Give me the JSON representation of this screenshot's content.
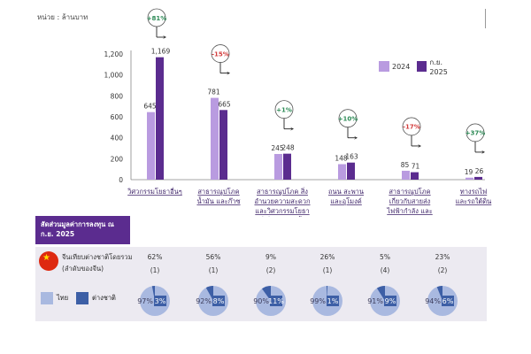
{
  "unit_label": "หน่วย : ล้านบาท",
  "chart_data": {
    "type": "bar",
    "title": "",
    "categories": [
      "วิศวกรรมโยธาอื่นๆ",
      "สาธารณูปโภค น้ำมัน และก๊าซ",
      "สาธารณูปโภค สิ่งอำนวยความสะดวก และวิศวกรรมโยธาที่เกี่ยวข้องในน้ำ",
      "ถนน สะพาน และอุโมงค์",
      "สาธารณูปโภค เกี่ยวกับสายส่งไฟฟ้ากำลัง และสายสัญญาณ",
      "ทางรถไฟ และรถใต้ดิน"
    ],
    "category_lines": [
      [
        "วิศวกรรมโยธาอื่นๆ"
      ],
      [
        "สาธารณูปโภค",
        "น้ำมัน และก๊าซ"
      ],
      [
        "สาธารณูปโภค สิ่ง",
        "อำนวยความสะดวก",
        "และวิศวกรรมโยธา",
        "ที่เกี่ยวข้องในน้ำ"
      ],
      [
        "ถนน สะพาน",
        "และอุโมงค์"
      ],
      [
        "สาธารณูปโภค",
        "เกี่ยวกับสายส่ง",
        "ไฟฟ้ากำลัง และ",
        "สายสัญญาณ"
      ],
      [
        "ทางรถไฟ",
        "และรถใต้ดิน"
      ]
    ],
    "series": [
      {
        "name": "2024",
        "color": "#b99be0",
        "values": [
          645,
          781,
          245,
          148,
          85,
          19
        ]
      },
      {
        "name": "ก.ย. 2025",
        "color": "#5b2c8f",
        "values": [
          1169,
          665,
          248,
          163,
          71,
          26
        ]
      }
    ],
    "changes": [
      "+81%",
      "-15%",
      "+1%",
      "+10%",
      "-17%",
      "+37%"
    ],
    "change_colors": [
      "#2e8b57",
      "#d23c3c",
      "#2e8b57",
      "#2e8b57",
      "#d23c3c",
      "#2e8b57"
    ],
    "yticks": [
      "0",
      "200",
      "400",
      "600",
      "800",
      "1,000",
      "1,200"
    ],
    "ylim": [
      0,
      1200
    ],
    "xlabel": "",
    "ylabel": ""
  },
  "table": {
    "header": "สัดส่วนมูลค่าการลงทุน ณ ก.ย. 2025",
    "china_label": "จีนเทียบต่างชาติโดยรวม (ลำดับของจีน)",
    "china_share": [
      "62%",
      "56%",
      "9%",
      "26%",
      "5%",
      "23%"
    ],
    "china_rank": [
      "(1)",
      "(1)",
      "(2)",
      "(1)",
      "(4)",
      "(2)"
    ],
    "thai_label": "ไทย",
    "foreign_label": "ต่างชาติ",
    "thai_pct": [
      "97%",
      "92%",
      "90%",
      "99%",
      "91%",
      "94%"
    ],
    "foreign_pct": [
      "3%",
      "8%",
      "11%",
      "1%",
      "9%",
      "6%"
    ],
    "thai_values": [
      97,
      92,
      90,
      99,
      91,
      94
    ],
    "thai_color": "#a9b9e0",
    "foreign_color": "#3d5fa6"
  }
}
